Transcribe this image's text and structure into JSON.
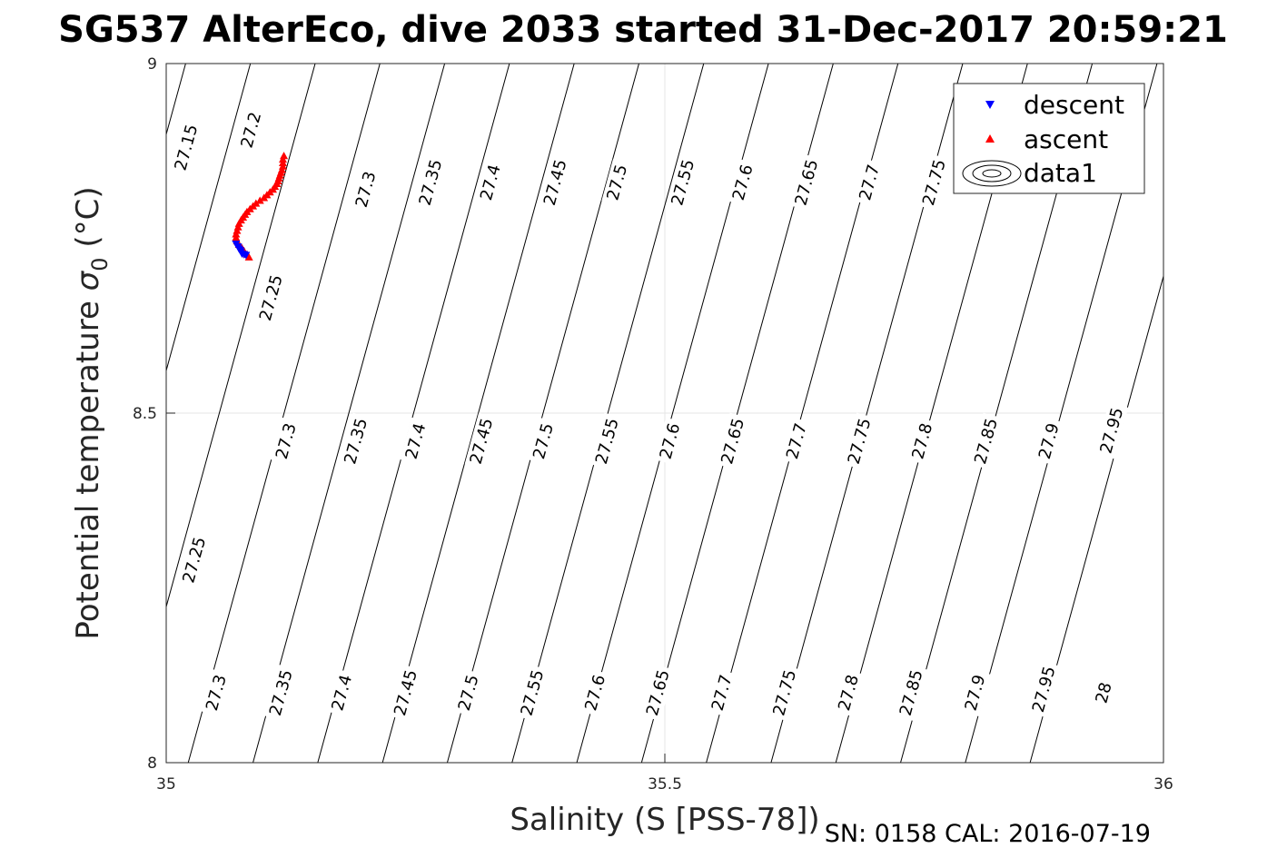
{
  "figure": {
    "title": "SG537 AlterEco, dive 2033 started 31-Dec-2017 20:59:21",
    "xlabel": "Salinity (S [PSS-78])",
    "ylabel": "Potential temperature σ 0 (°C)",
    "ylabel_main": "Potential temperature ",
    "ylabel_sigma": "σ",
    "ylabel_sub": "0",
    "ylabel_unit": " (°C)",
    "footer": "SN: 0158  CAL: 2016-07-19"
  },
  "legend": {
    "location": "top-right",
    "entries": [
      {
        "label": "descent",
        "marker": "down-triangle",
        "color": "#0000ff"
      },
      {
        "label": "ascent",
        "marker": "up-triangle",
        "color": "#ff0000"
      },
      {
        "label": "data1",
        "marker": "contour-ellipses",
        "color": "#000000"
      }
    ]
  },
  "chart_data": {
    "type": "scatter",
    "xlim": [
      35,
      36
    ],
    "ylim": [
      8,
      9
    ],
    "xticks": [
      "35",
      "35.5",
      "36"
    ],
    "yticks": [
      "8",
      "8.5",
      "9"
    ],
    "grid": true,
    "isopycnal_contours": {
      "levels": [
        27.15,
        27.2,
        27.25,
        27.3,
        27.35,
        27.4,
        27.45,
        27.5,
        27.55,
        27.6,
        27.65,
        27.7,
        27.75,
        27.8,
        27.85,
        27.9,
        27.95,
        28.0
      ],
      "color": "#000000"
    },
    "contour_labels": [
      {
        "text": "27.15",
        "s": 35.02,
        "t": 8.88
      },
      {
        "text": "27.2",
        "s": 35.085,
        "t": 8.905
      },
      {
        "text": "27.3",
        "s": 35.2,
        "t": 8.82
      },
      {
        "text": "27.35",
        "s": 35.265,
        "t": 8.83
      },
      {
        "text": "27.4",
        "s": 35.325,
        "t": 8.83
      },
      {
        "text": "27.45",
        "s": 35.39,
        "t": 8.83
      },
      {
        "text": "27.5",
        "s": 35.452,
        "t": 8.83
      },
      {
        "text": "27.55",
        "s": 35.518,
        "t": 8.83
      },
      {
        "text": "27.6",
        "s": 35.578,
        "t": 8.83
      },
      {
        "text": "27.65",
        "s": 35.642,
        "t": 8.83
      },
      {
        "text": "27.7",
        "s": 35.705,
        "t": 8.83
      },
      {
        "text": "27.75",
        "s": 35.77,
        "t": 8.83
      },
      {
        "text": "27.25",
        "s": 35.105,
        "t": 8.665
      },
      {
        "text": "27.3",
        "s": 35.12,
        "t": 8.46
      },
      {
        "text": "27.35",
        "s": 35.19,
        "t": 8.46
      },
      {
        "text": "27.4",
        "s": 35.25,
        "t": 8.46
      },
      {
        "text": "27.45",
        "s": 35.316,
        "t": 8.46
      },
      {
        "text": "27.5",
        "s": 35.378,
        "t": 8.46
      },
      {
        "text": "27.55",
        "s": 35.442,
        "t": 8.46
      },
      {
        "text": "27.6",
        "s": 35.505,
        "t": 8.46
      },
      {
        "text": "27.65",
        "s": 35.568,
        "t": 8.46
      },
      {
        "text": "27.7",
        "s": 35.632,
        "t": 8.46
      },
      {
        "text": "27.75",
        "s": 35.695,
        "t": 8.46
      },
      {
        "text": "27.8",
        "s": 35.758,
        "t": 8.46
      },
      {
        "text": "27.85",
        "s": 35.822,
        "t": 8.46
      },
      {
        "text": "27.9",
        "s": 35.885,
        "t": 8.46
      },
      {
        "text": "27.95",
        "s": 35.948,
        "t": 8.475
      },
      {
        "text": "27.25",
        "s": 35.028,
        "t": 8.29
      },
      {
        "text": "27.3",
        "s": 35.05,
        "t": 8.1
      },
      {
        "text": "27.35",
        "s": 35.115,
        "t": 8.1
      },
      {
        "text": "27.4",
        "s": 35.176,
        "t": 8.1
      },
      {
        "text": "27.45",
        "s": 35.24,
        "t": 8.1
      },
      {
        "text": "27.5",
        "s": 35.303,
        "t": 8.1
      },
      {
        "text": "27.55",
        "s": 35.367,
        "t": 8.1
      },
      {
        "text": "27.6",
        "s": 35.43,
        "t": 8.1
      },
      {
        "text": "27.65",
        "s": 35.493,
        "t": 8.1
      },
      {
        "text": "27.7",
        "s": 35.557,
        "t": 8.1
      },
      {
        "text": "27.75",
        "s": 35.62,
        "t": 8.1
      },
      {
        "text": "27.8",
        "s": 35.684,
        "t": 8.1
      },
      {
        "text": "27.85",
        "s": 35.747,
        "t": 8.1
      },
      {
        "text": "27.9",
        "s": 35.811,
        "t": 8.1
      },
      {
        "text": "27.95",
        "s": 35.88,
        "t": 8.105
      },
      {
        "text": "28",
        "s": 35.94,
        "t": 8.1
      }
    ],
    "series": [
      {
        "name": "descent",
        "marker": "down-triangle",
        "color": "#0000ff",
        "points": [
          [
            35.07,
            8.742
          ],
          [
            35.072,
            8.738
          ],
          [
            35.073,
            8.735
          ],
          [
            35.075,
            8.731
          ],
          [
            35.076,
            8.728
          ],
          [
            35.074,
            8.733
          ],
          [
            35.078,
            8.727
          ],
          [
            35.08,
            8.726
          ]
        ]
      },
      {
        "name": "ascent",
        "marker": "up-triangle",
        "color": "#ff0000",
        "points": [
          [
            35.083,
            8.723
          ],
          [
            35.081,
            8.727
          ],
          [
            35.078,
            8.732
          ],
          [
            35.076,
            8.736
          ],
          [
            35.073,
            8.741
          ],
          [
            35.071,
            8.746
          ],
          [
            35.07,
            8.751
          ],
          [
            35.07,
            8.756
          ],
          [
            35.071,
            8.761
          ],
          [
            35.072,
            8.766
          ],
          [
            35.073,
            8.771
          ],
          [
            35.075,
            8.776
          ],
          [
            35.077,
            8.78
          ],
          [
            35.079,
            8.784
          ],
          [
            35.081,
            8.788
          ],
          [
            35.084,
            8.792
          ],
          [
            35.087,
            8.796
          ],
          [
            35.09,
            8.8
          ],
          [
            35.094,
            8.804
          ],
          [
            35.098,
            8.808
          ],
          [
            35.101,
            8.812
          ],
          [
            35.104,
            8.816
          ],
          [
            35.107,
            8.82
          ],
          [
            35.109,
            8.824
          ],
          [
            35.111,
            8.828
          ],
          [
            35.112,
            8.832
          ],
          [
            35.113,
            8.836
          ],
          [
            35.114,
            8.84
          ],
          [
            35.115,
            8.844
          ],
          [
            35.116,
            8.848
          ],
          [
            35.117,
            8.853
          ],
          [
            35.117,
            8.858
          ],
          [
            35.117,
            8.863
          ],
          [
            35.118,
            8.868
          ]
        ]
      }
    ]
  }
}
